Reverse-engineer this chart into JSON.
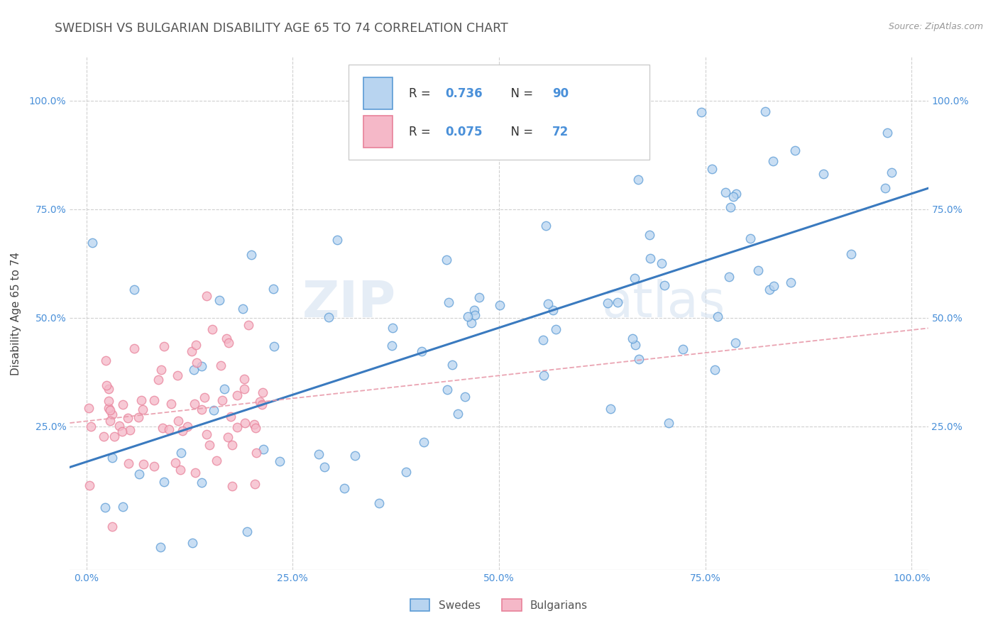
{
  "title": "SWEDISH VS BULGARIAN DISABILITY AGE 65 TO 74 CORRELATION CHART",
  "source_text": "Source: ZipAtlas.com",
  "ylabel": "Disability Age 65 to 74",
  "xlim": [
    -0.02,
    1.02
  ],
  "ylim": [
    -0.08,
    1.1
  ],
  "x_tick_labels": [
    "0.0%",
    "25.0%",
    "50.0%",
    "75.0%",
    "100.0%"
  ],
  "x_tick_vals": [
    0.0,
    0.25,
    0.5,
    0.75,
    1.0
  ],
  "y_tick_labels": [
    "25.0%",
    "50.0%",
    "75.0%",
    "100.0%"
  ],
  "y_tick_vals": [
    0.25,
    0.5,
    0.75,
    1.0
  ],
  "R_swedes": 0.736,
  "N_swedes": 90,
  "R_bulgarians": 0.075,
  "N_bulgarians": 72,
  "color_swedes_fill": "#b8d4f0",
  "color_swedes_edge": "#5b9bd5",
  "color_bulgarians_fill": "#f5b8c8",
  "color_bulgarians_edge": "#e8819a",
  "line_color_swedes": "#3a7abf",
  "line_color_bulgarians": "#e89aaa",
  "background_color": "#ffffff",
  "grid_color": "#d0d0d0",
  "title_color": "#555555",
  "watermark_zip": "ZIP",
  "watermark_atlas": "atlas",
  "legend_label_swedes": "Swedes",
  "legend_label_bulgarians": "Bulgarians"
}
